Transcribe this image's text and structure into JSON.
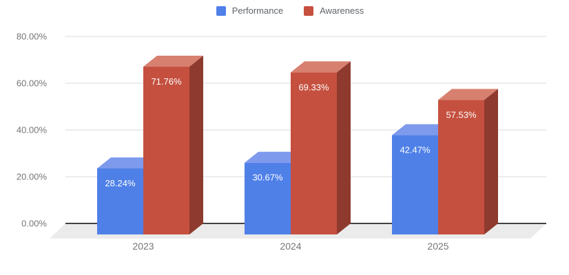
{
  "chart": {
    "background": "#ffffff",
    "grid_color": "#dadada",
    "axis_color": "#424242",
    "floor_color": "#ebebeb",
    "tick_label_color": "#757575",
    "category_label_color": "#757575",
    "value_label_color": "#ffffff",
    "legend_text_color": "#5f6368"
  },
  "chart_data": {
    "type": "bar",
    "subtype": "3d-column",
    "title": "",
    "xlabel": "",
    "ylabel": "",
    "categories": [
      "2023",
      "2024",
      "2025"
    ],
    "series": [
      {
        "name": "Performance",
        "values": [
          28.24,
          30.67,
          42.47
        ],
        "data_labels": [
          "28.24%",
          "30.67%",
          "42.47%"
        ],
        "color_front": "#4f80e8",
        "color_top": "#7e9aed",
        "color_side": "#3a5fb0"
      },
      {
        "name": "Awareness",
        "values": [
          71.76,
          69.33,
          57.53
        ],
        "data_labels": [
          "71.76%",
          "69.33%",
          "57.53%"
        ],
        "color_front": "#c5503f",
        "color_top": "#d8806f",
        "color_side": "#8e3a2e"
      }
    ],
    "yticks": [
      "0.00%",
      "20.00%",
      "40.00%",
      "60.00%",
      "80.00%"
    ],
    "ylim": [
      0,
      80
    ],
    "grid": true,
    "legend_position": "top"
  }
}
